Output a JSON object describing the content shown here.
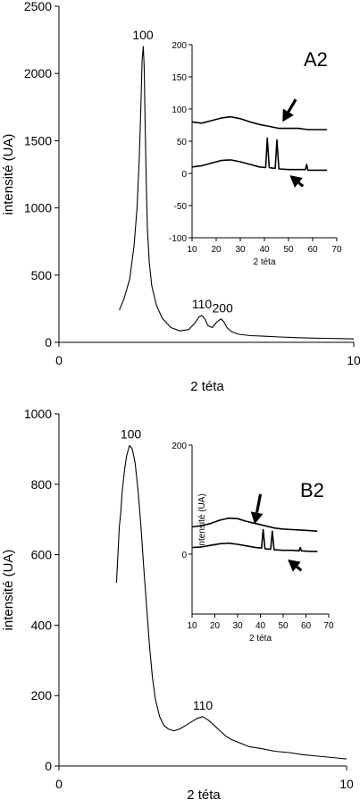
{
  "chart_data": [
    {
      "type": "line",
      "panel_label": "A2",
      "xlabel": "2 téta",
      "ylabel": "intensité (UA)",
      "xlim": [
        0,
        10
      ],
      "ylim": [
        0,
        2500
      ],
      "xticks": [
        "0",
        "10"
      ],
      "yticks": [
        "0",
        "500",
        "1000",
        "1500",
        "2000",
        "2500"
      ],
      "series": [
        {
          "x": [
            2.05,
            2.2,
            2.4,
            2.55,
            2.65,
            2.72,
            2.78,
            2.82,
            2.86,
            2.89,
            2.92,
            2.96,
            3.0,
            3.06,
            3.15,
            3.3,
            3.5,
            3.8,
            4.1,
            4.4,
            4.6,
            4.75,
            4.85,
            4.95,
            5.05,
            5.2,
            5.35,
            5.5,
            5.6,
            5.7,
            5.85,
            6.1,
            6.5,
            7.0,
            7.5,
            8.0,
            8.5,
            9.0,
            9.5,
            10.0
          ],
          "y": [
            240,
            320,
            470,
            720,
            1000,
            1350,
            1750,
            2100,
            2200,
            2050,
            1650,
            1200,
            850,
            600,
            420,
            280,
            180,
            110,
            85,
            95,
            140,
            190,
            200,
            175,
            125,
            110,
            150,
            175,
            150,
            110,
            80,
            60,
            50,
            45,
            40,
            35,
            32,
            30,
            28,
            25
          ]
        }
      ],
      "peak_labels": [
        {
          "text": "100",
          "x": 2.85,
          "y": 2200
        },
        {
          "text": "110",
          "x": 4.85,
          "y": 200
        },
        {
          "text": "200",
          "x": 5.55,
          "y": 170
        }
      ],
      "inset": {
        "xlim": [
          10,
          70
        ],
        "ylim": [
          -100,
          200
        ],
        "xlabel": "2 téta",
        "xticks": [
          "10",
          "20",
          "30",
          "40",
          "50",
          "60",
          "70"
        ],
        "yticks": [
          "-100",
          "-50",
          "0",
          "50",
          "100",
          "150",
          "200"
        ],
        "series": [
          {
            "x": [
              10,
              14,
              18,
              22,
              26,
              30,
              34,
              38,
              42,
              46,
              50,
              54,
              58,
              62,
              66
            ],
            "y": [
              80,
              78,
              82,
              86,
              88,
              85,
              80,
              76,
              73,
              70,
              70,
              70,
              68,
              68,
              68
            ]
          },
          {
            "x": [
              10,
              14,
              18,
              22,
              26,
              30,
              34,
              38,
              40.5,
              41.2,
              42,
              43.5,
              44.5,
              45.2,
              46,
              50,
              54,
              57,
              57.5,
              58,
              62,
              66
            ],
            "y": [
              10,
              12,
              16,
              20,
              21,
              18,
              14,
              10,
              9,
              55,
              9,
              8,
              8,
              52,
              7,
              6,
              6,
              6,
              14,
              5,
              5,
              5
            ]
          }
        ],
        "arrows": [
          {
            "from": [
              53,
              115
            ],
            "to": [
              47.5,
              80
            ]
          },
          {
            "from": [
              56,
              -20
            ],
            "to": [
              50.5,
              -3
            ]
          }
        ]
      }
    },
    {
      "type": "line",
      "panel_label": "B2",
      "xlabel": "2 téta",
      "ylabel": "intensité (UA)",
      "xlim": [
        0,
        10
      ],
      "ylim": [
        0,
        1000
      ],
      "xticks": [
        "0",
        "10"
      ],
      "yticks": [
        "0",
        "200",
        "400",
        "600",
        "800",
        "1000"
      ],
      "series": [
        {
          "x": [
            2.0,
            2.05,
            2.1,
            2.15,
            2.2,
            2.28,
            2.35,
            2.45,
            2.55,
            2.65,
            2.75,
            2.85,
            2.95,
            3.05,
            3.15,
            3.25,
            3.35,
            3.5,
            3.65,
            3.8,
            4.0,
            4.2,
            4.4,
            4.6,
            4.8,
            5.0,
            5.2,
            5.4,
            5.6,
            5.8,
            6.0,
            6.3,
            6.6,
            7.0,
            7.5,
            8.0,
            8.5,
            9.0,
            9.5,
            10.0
          ],
          "y": [
            520,
            600,
            680,
            720,
            780,
            840,
            880,
            910,
            900,
            860,
            780,
            680,
            560,
            450,
            340,
            250,
            190,
            140,
            115,
            105,
            100,
            105,
            115,
            125,
            135,
            140,
            130,
            115,
            100,
            85,
            75,
            65,
            55,
            50,
            42,
            38,
            32,
            28,
            24,
            20
          ]
        }
      ],
      "peak_labels": [
        {
          "text": "100",
          "x": 2.5,
          "y": 910
        },
        {
          "text": "110",
          "x": 5.0,
          "y": 140
        }
      ],
      "inset": {
        "xlim": [
          10,
          70
        ],
        "ylim": [
          -110,
          200
        ],
        "xlabel": "2 téta",
        "ylabel": "intensité (UA)",
        "xticks": [
          "10",
          "20",
          "30",
          "40",
          "50",
          "60",
          "70"
        ],
        "yticks": [
          "0",
          "200"
        ],
        "series": [
          {
            "x": [
              10,
              14,
              18,
              22,
              26,
              30,
              34,
              38,
              42,
              46,
              50,
              54,
              58,
              62,
              65
            ],
            "y": [
              50,
              52,
              56,
              62,
              66,
              65,
              60,
              56,
              52,
              48,
              46,
              45,
              44,
              43,
              42
            ]
          },
          {
            "x": [
              10,
              14,
              18,
              22,
              26,
              30,
              34,
              38,
              40.5,
              41.2,
              42,
              43.5,
              44.5,
              45.2,
              46,
              50,
              54,
              57,
              57.5,
              58,
              62,
              65
            ],
            "y": [
              12,
              13,
              16,
              19,
              20,
              18,
              15,
              12,
              11,
              45,
              10,
              9,
              9,
              42,
              8,
              7,
              7,
              6,
              12,
              6,
              5,
              5
            ]
          }
        ],
        "arrows": [
          {
            "from": [
              40,
              110
            ],
            "to": [
              37.5,
              55
            ]
          },
          {
            "from": [
              58,
              -30
            ],
            "to": [
              52,
              -10
            ]
          }
        ]
      }
    }
  ]
}
